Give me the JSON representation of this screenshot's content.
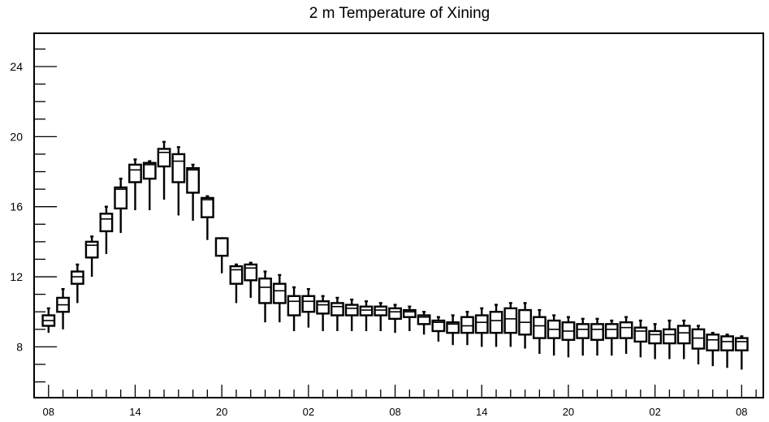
{
  "chart_data": {
    "type": "boxplot",
    "title": "2 m Temperature of Xining",
    "xlabel": "",
    "ylabel": "",
    "ylim": [
      5.1,
      25.9
    ],
    "y_ticks": [
      8,
      12,
      16,
      20,
      24
    ],
    "x_tick_labels": [
      "08",
      "14",
      "20",
      "02",
      "08",
      "14",
      "20",
      "02",
      "08"
    ],
    "x_tick_hours": [
      0,
      6,
      12,
      18,
      24,
      30,
      36,
      42,
      48
    ],
    "x_range_hours": [
      -1,
      49.5
    ],
    "grid": false,
    "legend": "none",
    "colors": {
      "box": "#000000",
      "background": "#ffffff"
    },
    "boxes": [
      {
        "hour": 0,
        "whisker_low": 8.8,
        "q1": 9.2,
        "median": 9.5,
        "q3": 9.8,
        "whisker_high": 10.2
      },
      {
        "hour": 1,
        "whisker_low": 9.0,
        "q1": 10.0,
        "median": 10.4,
        "q3": 10.8,
        "whisker_high": 11.3
      },
      {
        "hour": 2,
        "whisker_low": 10.5,
        "q1": 11.6,
        "median": 12.0,
        "q3": 12.3,
        "whisker_high": 12.7
      },
      {
        "hour": 3,
        "whisker_low": 12.0,
        "q1": 13.1,
        "median": 13.8,
        "q3": 14.0,
        "whisker_high": 14.3
      },
      {
        "hour": 4,
        "whisker_low": 13.3,
        "q1": 14.6,
        "median": 15.3,
        "q3": 15.6,
        "whisker_high": 16.0
      },
      {
        "hour": 5,
        "whisker_low": 14.5,
        "q1": 15.9,
        "median": 17.0,
        "q3": 17.1,
        "whisker_high": 17.6
      },
      {
        "hour": 6,
        "whisker_low": 15.8,
        "q1": 17.4,
        "median": 18.1,
        "q3": 18.4,
        "whisker_high": 18.7
      },
      {
        "hour": 7,
        "whisker_low": 15.8,
        "q1": 17.6,
        "median": 18.4,
        "q3": 18.5,
        "whisker_high": 18.6
      },
      {
        "hour": 8,
        "whisker_low": 16.4,
        "q1": 18.3,
        "median": 19.1,
        "q3": 19.3,
        "whisker_high": 19.7
      },
      {
        "hour": 9,
        "whisker_low": 15.5,
        "q1": 17.4,
        "median": 18.6,
        "q3": 19.0,
        "whisker_high": 19.4
      },
      {
        "hour": 10,
        "whisker_low": 15.2,
        "q1": 16.8,
        "median": 18.1,
        "q3": 18.2,
        "whisker_high": 18.4
      },
      {
        "hour": 11,
        "whisker_low": 14.1,
        "q1": 15.4,
        "median": 16.4,
        "q3": 16.5,
        "whisker_high": 16.6
      },
      {
        "hour": 12,
        "whisker_low": 12.2,
        "q1": 13.2,
        "median": 14.2,
        "q3": 14.2,
        "whisker_high": 14.2
      },
      {
        "hour": 13,
        "whisker_low": 10.5,
        "q1": 11.6,
        "median": 12.4,
        "q3": 12.6,
        "whisker_high": 12.7
      },
      {
        "hour": 14,
        "whisker_low": 10.8,
        "q1": 11.8,
        "median": 12.5,
        "q3": 12.7,
        "whisker_high": 12.8
      },
      {
        "hour": 15,
        "whisker_low": 9.4,
        "q1": 10.5,
        "median": 11.4,
        "q3": 11.9,
        "whisker_high": 12.3
      },
      {
        "hour": 16,
        "whisker_low": 9.4,
        "q1": 10.5,
        "median": 11.2,
        "q3": 11.6,
        "whisker_high": 12.1
      },
      {
        "hour": 17,
        "whisker_low": 8.9,
        "q1": 9.8,
        "median": 10.6,
        "q3": 10.9,
        "whisker_high": 11.4
      },
      {
        "hour": 18,
        "whisker_low": 9.1,
        "q1": 10.0,
        "median": 10.6,
        "q3": 10.9,
        "whisker_high": 11.3
      },
      {
        "hour": 19,
        "whisker_low": 8.9,
        "q1": 9.9,
        "median": 10.4,
        "q3": 10.6,
        "whisker_high": 10.9
      },
      {
        "hour": 20,
        "whisker_low": 8.9,
        "q1": 9.8,
        "median": 10.3,
        "q3": 10.5,
        "whisker_high": 10.8
      },
      {
        "hour": 21,
        "whisker_low": 8.9,
        "q1": 9.8,
        "median": 10.2,
        "q3": 10.4,
        "whisker_high": 10.7
      },
      {
        "hour": 22,
        "whisker_low": 8.9,
        "q1": 9.8,
        "median": 10.1,
        "q3": 10.3,
        "whisker_high": 10.6
      },
      {
        "hour": 23,
        "whisker_low": 8.9,
        "q1": 9.8,
        "median": 10.1,
        "q3": 10.3,
        "whisker_high": 10.5
      },
      {
        "hour": 24,
        "whisker_low": 8.8,
        "q1": 9.6,
        "median": 10.0,
        "q3": 10.2,
        "whisker_high": 10.4
      },
      {
        "hour": 25,
        "whisker_low": 8.9,
        "q1": 9.7,
        "median": 10.0,
        "q3": 10.1,
        "whisker_high": 10.3
      },
      {
        "hour": 26,
        "whisker_low": 8.7,
        "q1": 9.3,
        "median": 9.7,
        "q3": 9.8,
        "whisker_high": 10.0
      },
      {
        "hour": 27,
        "whisker_low": 8.3,
        "q1": 8.9,
        "median": 9.4,
        "q3": 9.5,
        "whisker_high": 9.7
      },
      {
        "hour": 28,
        "whisker_low": 8.1,
        "q1": 8.8,
        "median": 9.3,
        "q3": 9.4,
        "whisker_high": 9.8
      },
      {
        "hour": 29,
        "whisker_low": 8.1,
        "q1": 8.8,
        "median": 9.2,
        "q3": 9.7,
        "whisker_high": 10.0
      },
      {
        "hour": 30,
        "whisker_low": 8.0,
        "q1": 8.8,
        "median": 9.4,
        "q3": 9.8,
        "whisker_high": 10.2
      },
      {
        "hour": 31,
        "whisker_low": 8.0,
        "q1": 8.8,
        "median": 9.5,
        "q3": 10.0,
        "whisker_high": 10.4
      },
      {
        "hour": 32,
        "whisker_low": 8.0,
        "q1": 8.8,
        "median": 9.6,
        "q3": 10.2,
        "whisker_high": 10.5
      },
      {
        "hour": 33,
        "whisker_low": 7.9,
        "q1": 8.7,
        "median": 9.4,
        "q3": 10.1,
        "whisker_high": 10.5
      },
      {
        "hour": 34,
        "whisker_low": 7.6,
        "q1": 8.5,
        "median": 9.2,
        "q3": 9.7,
        "whisker_high": 10.1
      },
      {
        "hour": 35,
        "whisker_low": 7.5,
        "q1": 8.5,
        "median": 9.0,
        "q3": 9.5,
        "whisker_high": 9.8
      },
      {
        "hour": 36,
        "whisker_low": 7.4,
        "q1": 8.4,
        "median": 8.9,
        "q3": 9.4,
        "whisker_high": 9.7
      },
      {
        "hour": 37,
        "whisker_low": 7.5,
        "q1": 8.5,
        "median": 9.0,
        "q3": 9.3,
        "whisker_high": 9.6
      },
      {
        "hour": 38,
        "whisker_low": 7.5,
        "q1": 8.4,
        "median": 9.0,
        "q3": 9.3,
        "whisker_high": 9.6
      },
      {
        "hour": 39,
        "whisker_low": 7.5,
        "q1": 8.5,
        "median": 9.0,
        "q3": 9.3,
        "whisker_high": 9.5
      },
      {
        "hour": 40,
        "whisker_low": 7.6,
        "q1": 8.5,
        "median": 9.1,
        "q3": 9.4,
        "whisker_high": 9.7
      },
      {
        "hour": 41,
        "whisker_low": 7.4,
        "q1": 8.3,
        "median": 8.9,
        "q3": 9.1,
        "whisker_high": 9.5
      },
      {
        "hour": 42,
        "whisker_low": 7.3,
        "q1": 8.2,
        "median": 8.7,
        "q3": 8.9,
        "whisker_high": 9.3
      },
      {
        "hour": 43,
        "whisker_low": 7.3,
        "q1": 8.2,
        "median": 8.7,
        "q3": 9.0,
        "whisker_high": 9.5
      },
      {
        "hour": 44,
        "whisker_low": 7.3,
        "q1": 8.2,
        "median": 8.8,
        "q3": 9.2,
        "whisker_high": 9.5
      },
      {
        "hour": 45,
        "whisker_low": 7.0,
        "q1": 7.9,
        "median": 8.5,
        "q3": 9.0,
        "whisker_high": 9.2
      },
      {
        "hour": 46,
        "whisker_low": 6.9,
        "q1": 7.8,
        "median": 8.4,
        "q3": 8.7,
        "whisker_high": 8.8
      },
      {
        "hour": 47,
        "whisker_low": 6.8,
        "q1": 7.8,
        "median": 8.3,
        "q3": 8.6,
        "whisker_high": 8.7
      },
      {
        "hour": 48,
        "whisker_low": 6.7,
        "q1": 7.8,
        "median": 8.3,
        "q3": 8.5,
        "whisker_high": 8.6
      }
    ]
  }
}
